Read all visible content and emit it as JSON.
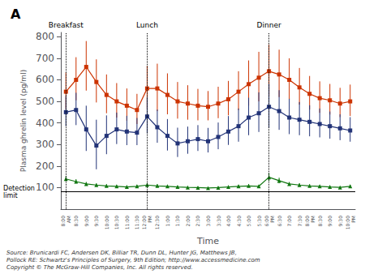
{
  "chart_data": {
    "type": "line",
    "title": "A",
    "xlabel": "Time",
    "ylabel": "Plasma ghrelin level (pg/ml)",
    "categories": [
      "8:00\nAM",
      "8:30",
      "9:00",
      "9:30",
      "10:00",
      "10:30",
      "11:00",
      "11:30",
      "12:00\nPM",
      "12:30",
      "1:00",
      "1:30",
      "2:00",
      "2:30",
      "3:00",
      "3:30",
      "4:00",
      "4:30",
      "5:00",
      "5:30",
      "6:00\nPM",
      "6:30",
      "7:00",
      "7:30",
      "8:00\nPM",
      "8:30",
      "9:00",
      "9:30",
      "10:00\nPM"
    ],
    "series": [
      {
        "color": "#cc3300",
        "marker": "square",
        "values": [
          545,
          600,
          660,
          590,
          530,
          500,
          480,
          460,
          560,
          560,
          530,
          500,
          490,
          480,
          475,
          490,
          510,
          545,
          580,
          610,
          640,
          625,
          600,
          565,
          535,
          515,
          505,
          490,
          500
        ],
        "error_plus": [
          90,
          105,
          120,
          105,
          95,
          85,
          80,
          75,
          105,
          115,
          100,
          90,
          85,
          78,
          73,
          78,
          85,
          95,
          110,
          120,
          125,
          115,
          100,
          90,
          83,
          78,
          76,
          73,
          78
        ],
        "error_minus": [
          80,
          95,
          110,
          95,
          85,
          75,
          70,
          65,
          95,
          105,
          90,
          80,
          75,
          68,
          63,
          68,
          75,
          85,
          100,
          110,
          115,
          105,
          90,
          80,
          73,
          68,
          66,
          63,
          68
        ]
      },
      {
        "color": "#223377",
        "marker": "square",
        "values": [
          450,
          460,
          370,
          295,
          340,
          370,
          360,
          355,
          430,
          380,
          340,
          305,
          315,
          325,
          315,
          335,
          360,
          385,
          425,
          445,
          475,
          455,
          425,
          415,
          405,
          395,
          385,
          375,
          365
        ],
        "error_plus": [
          75,
          80,
          110,
          120,
          95,
          78,
          73,
          68,
          88,
          82,
          78,
          73,
          68,
          65,
          62,
          67,
          72,
          82,
          92,
          97,
          107,
          97,
          87,
          82,
          77,
          72,
          68,
          65,
          62
        ],
        "error_minus": [
          65,
          70,
          100,
          110,
          85,
          68,
          63,
          58,
          78,
          72,
          68,
          63,
          58,
          55,
          52,
          57,
          62,
          72,
          82,
          87,
          97,
          87,
          77,
          72,
          67,
          62,
          58,
          55,
          52
        ]
      },
      {
        "color": "#117711",
        "marker": "triangle",
        "values": [
          140,
          128,
          117,
          112,
          108,
          106,
          103,
          106,
          112,
          108,
          106,
          103,
          101,
          100,
          98,
          100,
          103,
          106,
          108,
          106,
          148,
          132,
          117,
          112,
          108,
          106,
          103,
          101,
          106
        ],
        "error_plus": [
          14,
          11,
          9,
          7,
          7,
          6,
          6,
          7,
          9,
          8,
          7,
          6,
          5,
          5,
          4,
          5,
          6,
          7,
          8,
          7,
          19,
          14,
          9,
          8,
          7,
          6,
          6,
          5,
          7
        ],
        "error_minus": [
          11,
          9,
          8,
          6,
          6,
          5,
          5,
          6,
          8,
          7,
          6,
          5,
          4,
          4,
          3,
          4,
          5,
          6,
          7,
          6,
          17,
          12,
          8,
          7,
          6,
          5,
          5,
          4,
          6
        ]
      }
    ],
    "ylim": [
      0,
      820
    ],
    "yticks": [
      100,
      200,
      300,
      400,
      500,
      600,
      700,
      800
    ],
    "grid": false,
    "annotations": [
      {
        "text": "Breakfast",
        "x": "8:00\nAM"
      },
      {
        "text": "Lunch",
        "x": "12:00\nPM"
      },
      {
        "text": "Dinner",
        "x": "6:00\nPM"
      },
      {
        "text": "Detection\nlimit",
        "y": 80
      },
      {
        "text": "Source: Brunicardi FC, Andersen DK, Billiar TR, Dunn DL, Hunter JG, Matthews JB,\nPollock RE: Schwartz's Principles of Surgery, 9th Edition; http://www.accessmedicine.com\nCopyright © The McGraw-Hill Companies, Inc. All rights reserved."
      }
    ]
  }
}
